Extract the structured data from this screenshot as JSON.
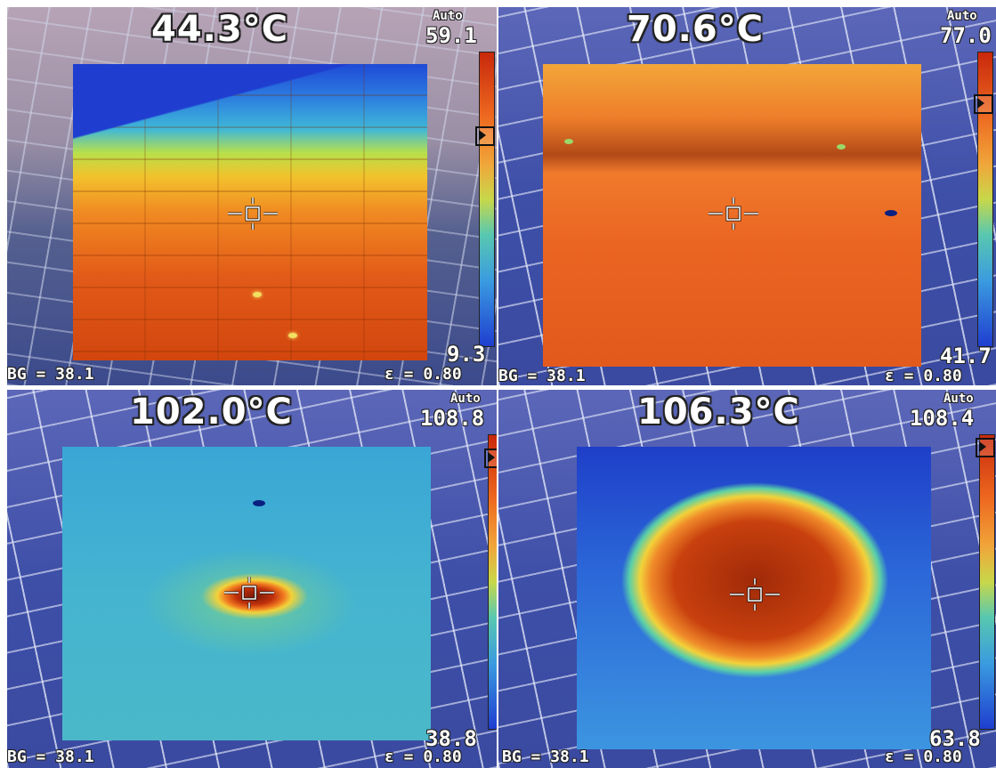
{
  "panels": [
    {
      "temperature": "44.3°C",
      "range_mode": "Auto",
      "scale_max": "59.1",
      "scale_min": "9.3",
      "background_temp": "BG = 38.1",
      "emissivity": "ε = 0.80",
      "pointer_level": 0.76
    },
    {
      "temperature": "70.6°C",
      "range_mode": "Auto",
      "scale_max": "77.0",
      "scale_min": "41.7",
      "background_temp": "BG = 38.1",
      "emissivity": "ε = 0.80",
      "pointer_level": 0.8
    },
    {
      "temperature": "102.0°C",
      "range_mode": "Auto",
      "scale_max": "108.8",
      "scale_min": "38.8",
      "background_temp": "BG = 38.1",
      "emissivity": "ε = 0.80",
      "pointer_level": 0.92
    },
    {
      "temperature": "106.3°C",
      "range_mode": "Auto",
      "scale_max": "108.4",
      "scale_min": "63.8",
      "background_temp": "BG = 38.1",
      "emissivity": "ε = 0.80",
      "pointer_level": 0.96
    }
  ],
  "colors": {
    "hot": "#c8280c",
    "warm": "#f0a63a",
    "cool": "#58c8b0",
    "cold": "#1f3ed0"
  },
  "icons": {
    "crosshair": "crosshair-icon",
    "pointer": "scale-pointer-icon"
  }
}
